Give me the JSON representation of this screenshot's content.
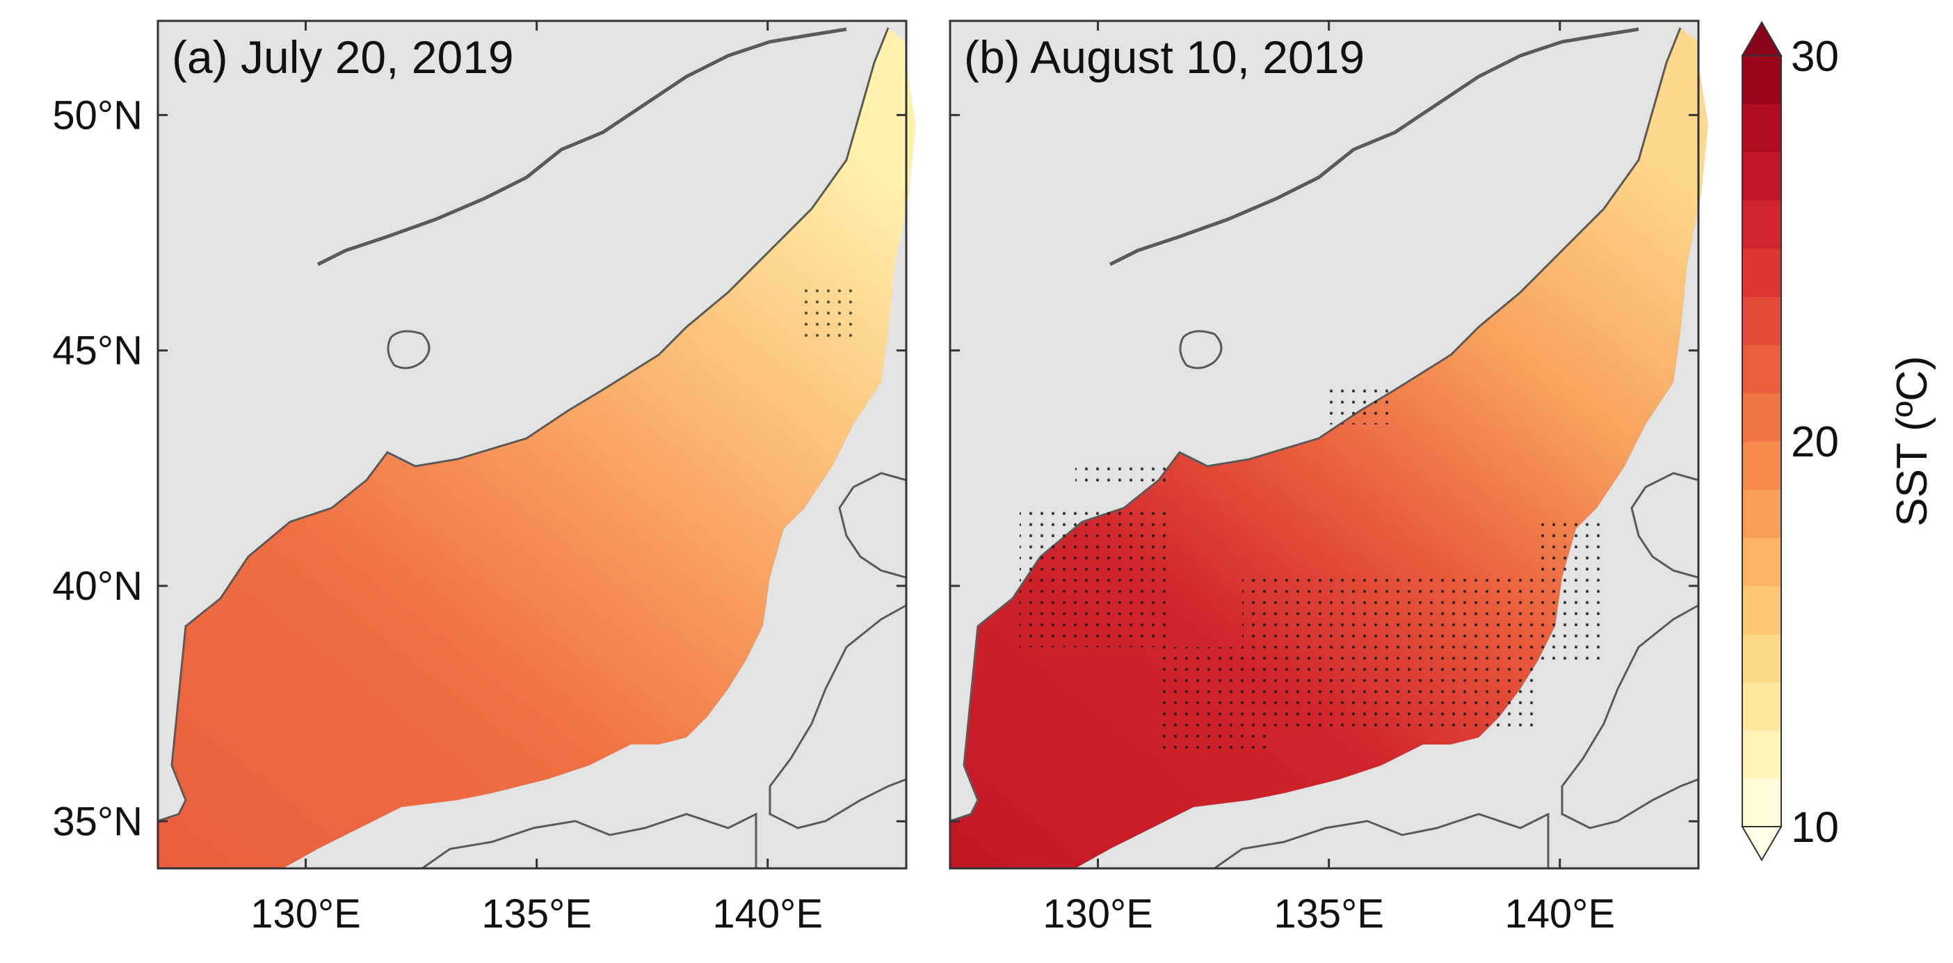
{
  "figure": {
    "colorbar": {
      "label": "SST (ºC)",
      "min": 10,
      "max": 30,
      "ticks": [
        "10",
        "20",
        "30"
      ],
      "colors": [
        "#fffed8",
        "#fff4b8",
        "#ffe89c",
        "#ffd986",
        "#fec772",
        "#fcb462",
        "#f99f55",
        "#f58a4b",
        "#f07443",
        "#ea5e3d",
        "#e34a37",
        "#dc3532",
        "#d1252c",
        "#c21726",
        "#b00d21",
        "#9b061c"
      ]
    },
    "panels": [
      {
        "id": "a",
        "title": "(a) July 20, 2019"
      },
      {
        "id": "b",
        "title": "(b) August 10, 2019"
      }
    ],
    "axes": {
      "lon_range": [
        126.8,
        143.0
      ],
      "lat_range": [
        34.0,
        52.0
      ],
      "x_ticks": [
        {
          "value": 130,
          "label": "130°E"
        },
        {
          "value": 135,
          "label": "135°E"
        },
        {
          "value": 140,
          "label": "140°E"
        }
      ],
      "y_ticks": [
        {
          "value": 50,
          "label": "50°N"
        },
        {
          "value": 45,
          "label": "45°N"
        },
        {
          "value": 40,
          "label": "40°N"
        },
        {
          "value": 35,
          "label": "35°N"
        }
      ]
    },
    "colors": {
      "land": "#e3e3e3",
      "coast": "#5a5a5a",
      "frame": "#333333"
    }
  }
}
